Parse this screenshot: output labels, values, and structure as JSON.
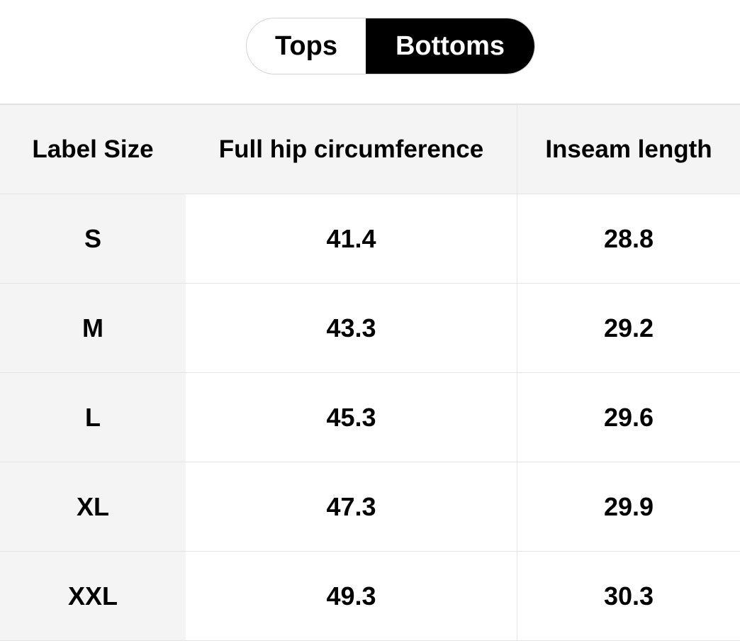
{
  "tabs": [
    {
      "label": "Tops",
      "selected": false
    },
    {
      "label": "Bottoms",
      "selected": true
    }
  ],
  "table": {
    "header": [
      "Label Size",
      "Full hip circumference",
      "Inseam length"
    ],
    "rows": [
      [
        "S",
        "41.4",
        "28.8"
      ],
      [
        "M",
        "43.3",
        "29.2"
      ],
      [
        "L",
        "45.3",
        "29.6"
      ],
      [
        "XL",
        "47.3",
        "29.9"
      ],
      [
        "XXL",
        "49.3",
        "30.3"
      ]
    ]
  }
}
